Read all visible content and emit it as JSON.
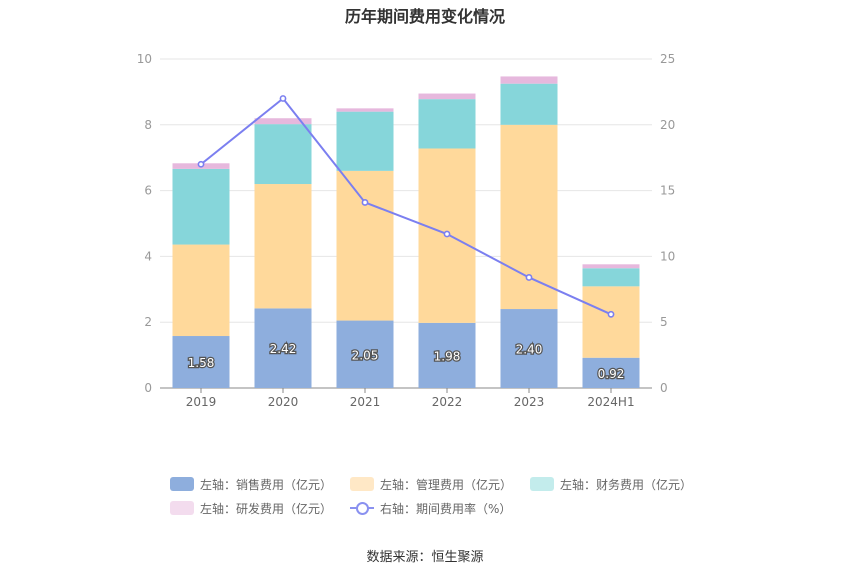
{
  "chart_data": {
    "type": "bar",
    "title": "历年期间费用变化情况",
    "categories": [
      "2019",
      "2020",
      "2021",
      "2022",
      "2023",
      "2024H1"
    ],
    "left_axis": {
      "min": 0,
      "max": 10,
      "ticks": [
        0,
        2,
        4,
        6,
        8,
        10
      ]
    },
    "right_axis": {
      "min": 0,
      "max": 25,
      "ticks": [
        0,
        5,
        10,
        15,
        20,
        25
      ]
    },
    "stacked": true,
    "series": [
      {
        "name": "左轴：销售费用（亿元）",
        "axis": "left",
        "color": "#8eaedd",
        "values": [
          1.58,
          2.42,
          2.05,
          1.98,
          2.4,
          0.92
        ],
        "labels": [
          "1.58",
          "2.42",
          "2.05",
          "1.98",
          "2.40",
          "0.92"
        ]
      },
      {
        "name": "左轴：管理费用（亿元）",
        "axis": "left",
        "color": "#ffd99b",
        "values": [
          2.78,
          3.78,
          4.55,
          5.3,
          5.6,
          2.17
        ]
      },
      {
        "name": "左轴：财务费用（亿元）",
        "axis": "left",
        "color": "#86d6da",
        "values": [
          2.3,
          1.82,
          1.8,
          1.5,
          1.25,
          0.55
        ]
      },
      {
        "name": "左轴：研发费用（亿元）",
        "axis": "left",
        "color": "#e6b8dd",
        "values": [
          0.17,
          0.18,
          0.1,
          0.17,
          0.22,
          0.12
        ]
      }
    ],
    "line_series": {
      "name": "右轴：期间费用率（%）",
      "axis": "right",
      "color": "#7b7ff0",
      "values": [
        17.0,
        22.0,
        14.1,
        11.7,
        8.4,
        5.6
      ]
    },
    "legend_position": "bottom",
    "grid": true
  },
  "source": "数据来源：恒生聚源"
}
